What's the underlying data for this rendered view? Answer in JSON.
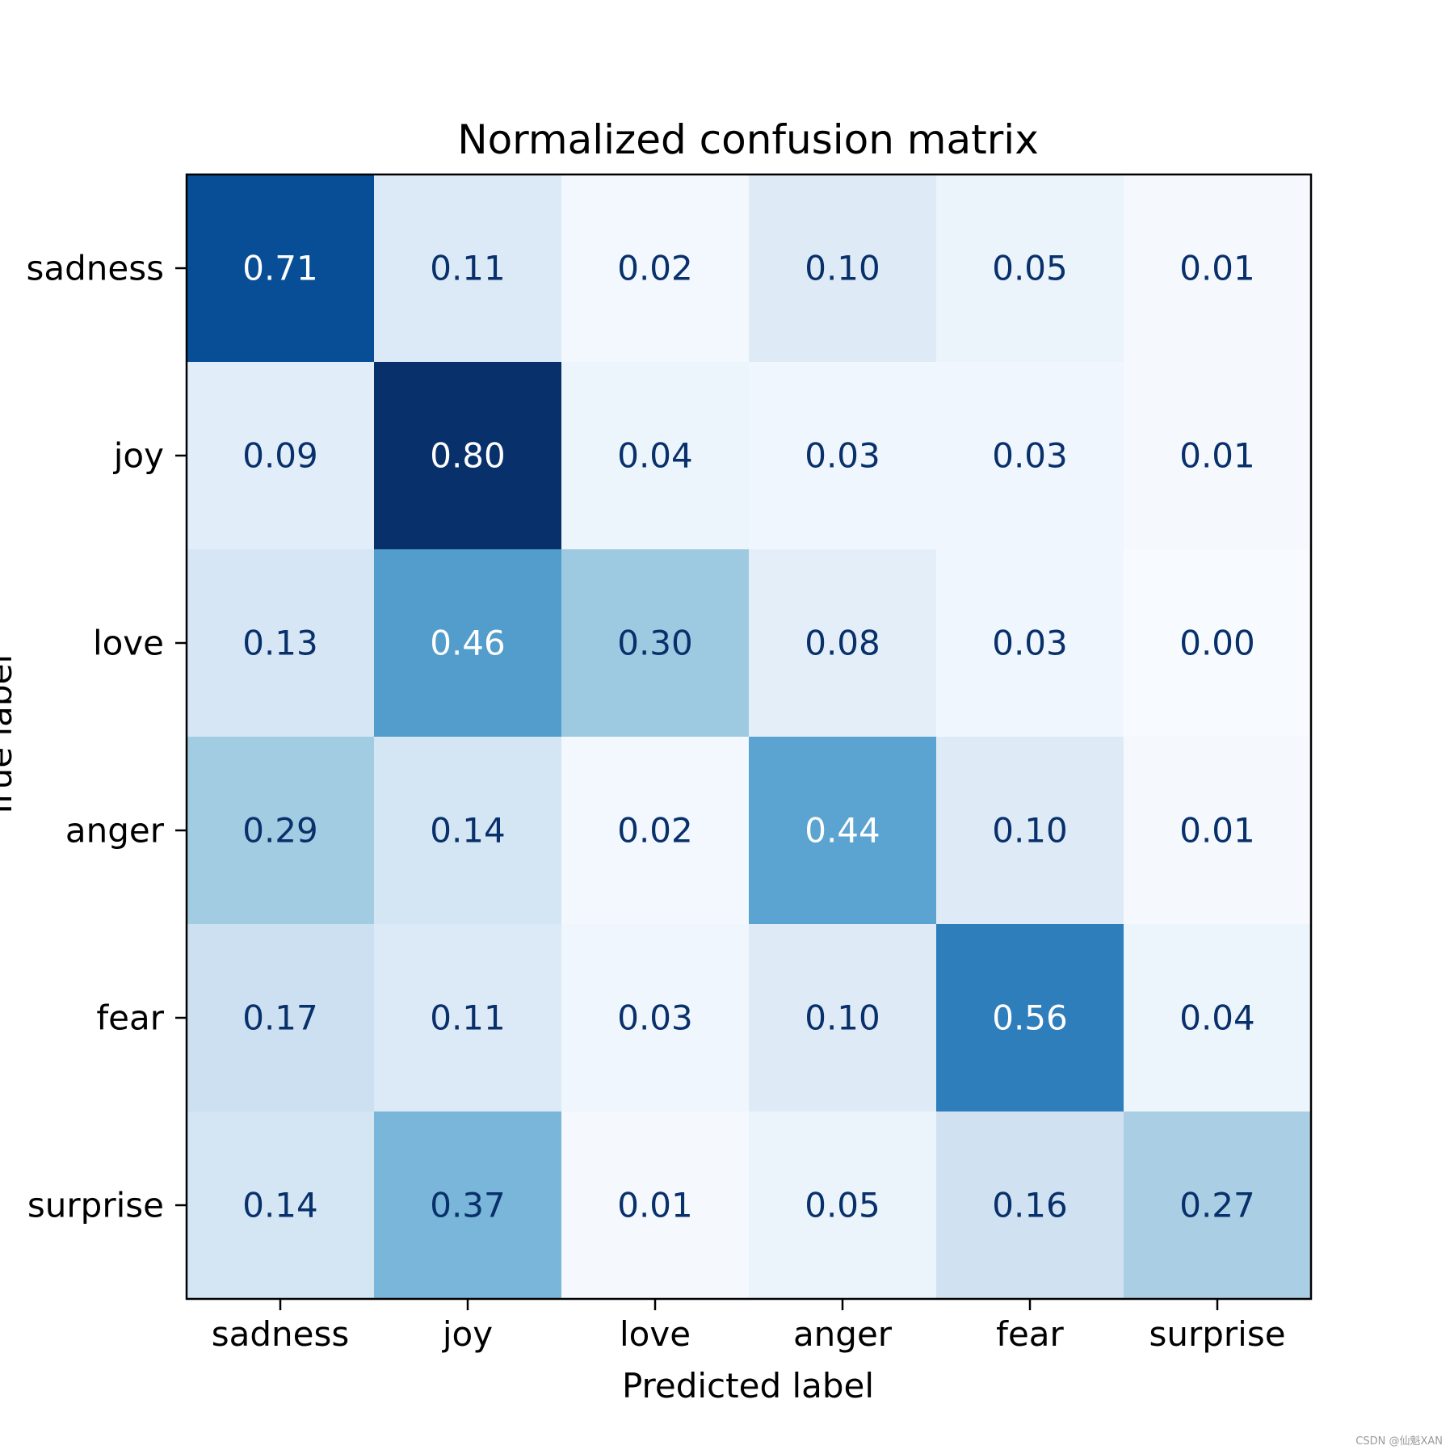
{
  "chart_data": {
    "type": "heatmap",
    "title": "Normalized confusion matrix",
    "xlabel": "Predicted label",
    "ylabel": "True label",
    "x_categories": [
      "sadness",
      "joy",
      "love",
      "anger",
      "fear",
      "surprise"
    ],
    "y_categories": [
      "sadness",
      "joy",
      "love",
      "anger",
      "fear",
      "surprise"
    ],
    "values": [
      [
        0.71,
        0.11,
        0.02,
        0.1,
        0.05,
        0.01
      ],
      [
        0.09,
        0.8,
        0.04,
        0.03,
        0.03,
        0.01
      ],
      [
        0.13,
        0.46,
        0.3,
        0.08,
        0.03,
        0.0
      ],
      [
        0.29,
        0.14,
        0.02,
        0.44,
        0.1,
        0.01
      ],
      [
        0.17,
        0.11,
        0.03,
        0.1,
        0.56,
        0.04
      ],
      [
        0.14,
        0.37,
        0.01,
        0.05,
        0.16,
        0.27
      ]
    ],
    "value_range": [
      0.0,
      0.8
    ],
    "colormap": "Blues",
    "text_dark_color": "#08306b",
    "text_light_color": "#ffffff"
  },
  "watermark": "CSDN @仙魁XAN"
}
